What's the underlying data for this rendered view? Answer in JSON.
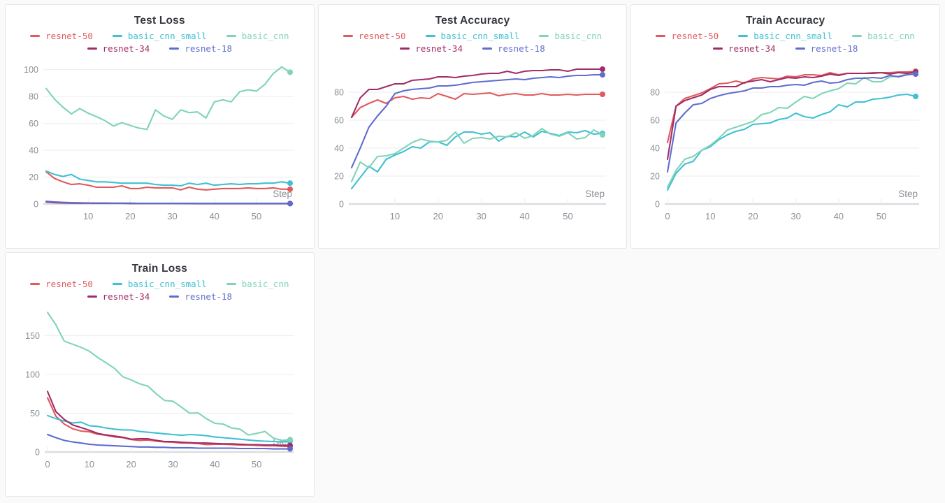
{
  "ui": {
    "page_bg": "#fafafa",
    "panel_bg": "#ffffff",
    "panel_border": "#e7e7e9",
    "grid_line": "#f0f0f3",
    "axis_line": "#dcdce0",
    "tick_text": "#8a9097",
    "title_text": "#33373d"
  },
  "chart_data": [
    {
      "id": "test-loss",
      "type": "line",
      "title": "Test Loss",
      "xlabel": "Step",
      "y_ticks": [
        0,
        20,
        40,
        60,
        80,
        100
      ],
      "x_ticks": [
        10,
        20,
        30,
        40,
        50
      ],
      "ymax": 105,
      "xmax": 58,
      "x_step": 2,
      "plot_left": 56,
      "series": [
        {
          "name": "resnet-50",
          "color": "#e0595c",
          "values": [
            24,
            19,
            16.5,
            14.5,
            15,
            14,
            12.5,
            12.5,
            12.5,
            13.5,
            11.5,
            11.5,
            12.5,
            12,
            12,
            12,
            10.5,
            12.5,
            11,
            10.5,
            11,
            11.5,
            11.5,
            11.5,
            12,
            11.5,
            11.5,
            12,
            11,
            11
          ]
        },
        {
          "name": "basic_cnn_small",
          "color": "#3fc0d3",
          "values": [
            24.5,
            22,
            20.5,
            22,
            18.5,
            17.5,
            16.5,
            16.5,
            16,
            15.5,
            15.5,
            15.5,
            15.5,
            14.5,
            14,
            14,
            13.5,
            15.5,
            14.5,
            15.5,
            14,
            14.5,
            15,
            14.5,
            15,
            15,
            15.5,
            15.5,
            16.5,
            15.5
          ]
        },
        {
          "name": "basic_cnn",
          "color": "#7fd4b8",
          "values": [
            86,
            78,
            72,
            67,
            71,
            67.5,
            65,
            62,
            58,
            60.5,
            58.5,
            56.5,
            55.5,
            70,
            65.5,
            63,
            70,
            68,
            68.5,
            64,
            76,
            77.5,
            76,
            83.5,
            85,
            84,
            89,
            97,
            102,
            98
          ]
        },
        {
          "name": "resnet-34",
          "color": "#a12d66",
          "values": [
            1.5,
            1,
            0.8,
            0.7,
            0.6,
            0.6,
            0.5,
            0.5,
            0.5,
            0.5,
            0.4,
            0.4,
            0.4,
            0.4,
            0.4,
            0.4,
            0.4,
            0.4,
            0.3,
            0.3,
            0.3,
            0.3,
            0.3,
            0.3,
            0.3,
            0.3,
            0.3,
            0.3,
            0.3,
            0.3
          ]
        },
        {
          "name": "resnet-18",
          "color": "#5f6cce",
          "values": [
            2,
            1.5,
            1.2,
            1,
            0.9,
            0.8,
            0.7,
            0.7,
            0.6,
            0.6,
            0.6,
            0.5,
            0.5,
            0.5,
            0.5,
            0.5,
            0.4,
            0.4,
            0.4,
            0.4,
            0.4,
            0.4,
            0.4,
            0.4,
            0.4,
            0.4,
            0.4,
            0.4,
            0.4,
            0.4
          ]
        }
      ]
    },
    {
      "id": "test-accuracy",
      "type": "line",
      "title": "Test Accuracy",
      "xlabel": "Step",
      "y_ticks": [
        0,
        20,
        40,
        60,
        80
      ],
      "x_ticks": [
        10,
        20,
        30,
        40,
        50
      ],
      "ymax": 101,
      "xmax": 58,
      "x_step": 2,
      "plot_left": 46,
      "series": [
        {
          "name": "resnet-50",
          "color": "#e0595c",
          "values": [
            62,
            69,
            72,
            74.5,
            72,
            76,
            77,
            75,
            76,
            75.5,
            79,
            77,
            75,
            79,
            78.5,
            79,
            79.5,
            77.5,
            78.5,
            79,
            78,
            78,
            79,
            78,
            78,
            78.5,
            78,
            78.5,
            78.5,
            78.5
          ]
        },
        {
          "name": "basic_cnn_small",
          "color": "#3fc0d3",
          "values": [
            11,
            19,
            27,
            23,
            32,
            35,
            37.5,
            41,
            40,
            44.5,
            44.5,
            42,
            48,
            51.5,
            51.5,
            50,
            51,
            45,
            48.5,
            48,
            51.5,
            48,
            52,
            50.5,
            49,
            51.5,
            51,
            52.5,
            50,
            50.5
          ]
        },
        {
          "name": "basic_cnn",
          "color": "#7fd4b8",
          "values": [
            16,
            30,
            26,
            34,
            34.5,
            36,
            40,
            44,
            46.5,
            45,
            44.5,
            45.5,
            51.5,
            43.5,
            47,
            47.5,
            46.5,
            48.5,
            48,
            51,
            47,
            49,
            54,
            50,
            48.5,
            51,
            46.5,
            47.5,
            53,
            49.5
          ]
        },
        {
          "name": "resnet-34",
          "color": "#a12d66",
          "values": [
            62,
            76,
            82,
            82,
            84,
            86,
            86,
            88.5,
            89,
            89.5,
            91,
            91,
            90.5,
            91.5,
            92,
            93,
            93.5,
            93.5,
            95,
            93.5,
            95,
            95.5,
            95.5,
            96,
            96,
            95,
            96.5,
            96.5,
            96.5,
            96.5
          ]
        },
        {
          "name": "resnet-18",
          "color": "#5f6cce",
          "values": [
            26,
            40,
            55,
            63,
            70,
            79,
            81,
            82,
            82.5,
            83,
            84.5,
            84.5,
            85,
            86,
            87,
            87.5,
            88,
            88.5,
            89,
            89.5,
            89,
            90,
            90.5,
            91,
            90.5,
            91.5,
            92,
            92,
            92.5,
            92.5
          ]
        }
      ]
    },
    {
      "id": "train-accuracy",
      "type": "line",
      "title": "Train Accuracy",
      "xlabel": "Step",
      "y_ticks": [
        0,
        20,
        40,
        60,
        80
      ],
      "x_ticks": [
        0,
        10,
        20,
        30,
        40,
        50
      ],
      "ymax": 101,
      "xmax": 58,
      "x_step": 2,
      "plot_left": 50,
      "series": [
        {
          "name": "resnet-50",
          "color": "#e0595c",
          "values": [
            44,
            70,
            75.5,
            77.5,
            79.5,
            82.5,
            86,
            86.5,
            88,
            86.5,
            89.5,
            90.5,
            90,
            89.5,
            91.5,
            91,
            92.5,
            92.5,
            92,
            94,
            92.5,
            93.5,
            93.5,
            93.5,
            94,
            94,
            94,
            94.5,
            94.5,
            95
          ]
        },
        {
          "name": "basic_cnn_small",
          "color": "#3fc0d3",
          "values": [
            10,
            22,
            28.5,
            30.5,
            38.5,
            41,
            46,
            49.5,
            52,
            53.5,
            57,
            57.5,
            58,
            60.5,
            61.5,
            65,
            62.5,
            61.5,
            64,
            66,
            71,
            69.5,
            73,
            73,
            75,
            75.5,
            76.5,
            78,
            78.5,
            77
          ]
        },
        {
          "name": "basic_cnn",
          "color": "#7fd4b8",
          "values": [
            12,
            24,
            32,
            34,
            38.5,
            42,
            47,
            53,
            55,
            57,
            59,
            64,
            65.5,
            69,
            68.5,
            73,
            77,
            75.5,
            79,
            81,
            82.5,
            86.5,
            86,
            90.5,
            87.5,
            87.5,
            91,
            91.5,
            93,
            94.5
          ]
        },
        {
          "name": "resnet-34",
          "color": "#a12d66",
          "values": [
            32,
            70,
            74,
            76,
            78,
            82,
            84,
            84,
            84,
            87,
            88,
            89,
            87.5,
            89,
            90.5,
            90,
            91,
            90.5,
            91.5,
            93,
            92,
            93.5,
            93.5,
            93.5,
            93.5,
            94,
            93,
            94,
            93.5,
            94.5
          ]
        },
        {
          "name": "resnet-18",
          "color": "#5f6cce",
          "values": [
            23,
            58,
            65,
            71,
            72,
            75.5,
            77.5,
            79,
            80,
            81,
            83,
            83,
            84,
            84,
            85,
            85.5,
            85,
            87,
            88,
            86.5,
            87,
            89,
            90,
            90,
            90.5,
            90,
            92,
            91,
            92.5,
            93
          ]
        }
      ]
    },
    {
      "id": "train-loss",
      "type": "line",
      "title": "Train Loss",
      "xlabel": "Step",
      "y_ticks": [
        0,
        50,
        100,
        150
      ],
      "x_ticks": [
        0,
        10,
        20,
        30,
        40,
        50
      ],
      "ymax": 182,
      "xmax": 58,
      "x_step": 2,
      "plot_left": 58,
      "series": [
        {
          "name": "resnet-50",
          "color": "#e0595c",
          "values": [
            70,
            46,
            36,
            30,
            27,
            26,
            23,
            21.5,
            19.5,
            18.5,
            16,
            15,
            15.5,
            14,
            13,
            12.5,
            11.5,
            11.5,
            11,
            9.5,
            10,
            10,
            9.5,
            9,
            9,
            8.5,
            8,
            8,
            7.5,
            7
          ]
        },
        {
          "name": "basic_cnn_small",
          "color": "#3fc0d3",
          "values": [
            47,
            43,
            40,
            37.5,
            38.5,
            34,
            33,
            31,
            29.5,
            28.5,
            28.5,
            26.5,
            25.5,
            24.5,
            23.5,
            22.5,
            21.5,
            22.5,
            22,
            21,
            19.5,
            18.5,
            17.5,
            16.5,
            15.5,
            14.5,
            14,
            13.5,
            13,
            14
          ]
        },
        {
          "name": "basic_cnn",
          "color": "#7fd4b8",
          "values": [
            180,
            164,
            143,
            139,
            135,
            130,
            122,
            115,
            108,
            97,
            93,
            88,
            85,
            75,
            66.5,
            65.5,
            58,
            50,
            50.5,
            43,
            37,
            36,
            31,
            29.5,
            22,
            24,
            26.5,
            18,
            15,
            16
          ]
        },
        {
          "name": "resnet-34",
          "color": "#a12d66",
          "values": [
            78,
            52,
            42,
            35,
            31.5,
            28,
            24,
            22,
            20.5,
            19,
            16.5,
            17,
            17,
            15,
            13.5,
            13.5,
            12.5,
            12,
            11.5,
            11.5,
            11,
            10.5,
            10.5,
            10,
            9.5,
            9.5,
            9,
            9,
            8.5,
            8.5
          ]
        },
        {
          "name": "resnet-18",
          "color": "#5f6cce",
          "values": [
            22.5,
            18.5,
            15,
            13,
            11.5,
            10,
            9,
            8.5,
            8,
            7.5,
            7,
            6.5,
            6.5,
            6,
            6,
            5.5,
            5.5,
            5.5,
            5,
            5,
            5,
            5,
            5,
            4.5,
            4.5,
            4.5,
            4.5,
            4,
            4,
            4
          ]
        }
      ]
    }
  ]
}
